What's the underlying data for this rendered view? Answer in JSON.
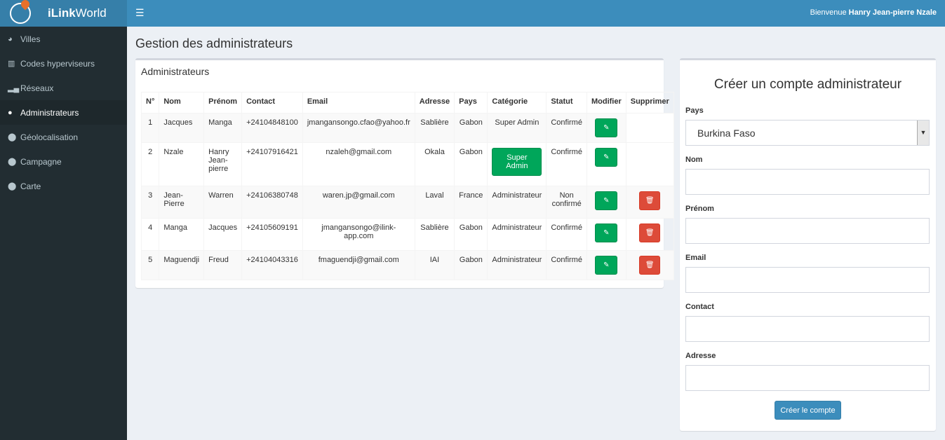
{
  "header": {
    "brand_bold": "iLink",
    "brand_rest": " World",
    "welcome_prefix": "Bienvenue ",
    "user": "Hanry Jean-pierre Nzale",
    "menu_icon": "bars-icon"
  },
  "sidebar": {
    "items": [
      {
        "label": "Villes",
        "icon": "globe-icon"
      },
      {
        "label": "Codes hyperviseurs",
        "icon": "barcode-icon"
      },
      {
        "label": "Réseaux",
        "icon": "signal-icon"
      },
      {
        "label": "Administrateurs",
        "icon": "user-icon",
        "active": true
      },
      {
        "label": "Géolocalisation",
        "icon": "map-marker-icon"
      },
      {
        "label": "Campagne",
        "icon": "map-marker-icon"
      },
      {
        "label": "Carte",
        "icon": "map-marker-icon"
      }
    ]
  },
  "page": {
    "title": "Gestion des administrateurs"
  },
  "table": {
    "title": "Administrateurs",
    "columns": [
      "N°",
      "Nom",
      "Prénom",
      "Contact",
      "Email",
      "Adresse",
      "Pays",
      "Catégorie",
      "Statut",
      "Modifier",
      "Supprimer"
    ],
    "rows": [
      {
        "n": "1",
        "nom": "Jacques",
        "prenom": "Manga",
        "contact": "+24104848100",
        "email": "jmangansongo.cfao@yahoo.fr",
        "adresse": "Sablière",
        "pays": "Gabon",
        "categorie": "Super Admin",
        "statut": "Confirmé"
      },
      {
        "n": "2",
        "nom": "Nzale",
        "prenom": "Hanry Jean-pierre",
        "contact": "+24107916421",
        "email": "nzaleh@gmail.com",
        "adresse": "Okala",
        "pays": "Gabon",
        "categorie": "Super Admin",
        "statut": "Confirmé"
      },
      {
        "n": "3",
        "nom": "Jean-Pierre",
        "prenom": "Warren",
        "contact": "+24106380748",
        "email": "waren.jp@gmail.com",
        "adresse": "Laval",
        "pays": "France",
        "categorie": "Administrateur",
        "statut": "Non confirmé"
      },
      {
        "n": "4",
        "nom": "Manga",
        "prenom": "Jacques",
        "contact": "+24105609191",
        "email": "jmangansongo@ilink-app.com",
        "adresse": "Sablière",
        "pays": "Gabon",
        "categorie": "Administrateur",
        "statut": "Confirmé"
      },
      {
        "n": "5",
        "nom": "Maguendji",
        "prenom": "Freud",
        "contact": "+24104043316",
        "email": "fmaguendji@gmail.com",
        "adresse": "IAI",
        "pays": "Gabon",
        "categorie": "Administrateur",
        "statut": "Confirmé"
      }
    ]
  },
  "form": {
    "title": "Créer un compte administrateur",
    "pays_label": "Pays",
    "pays_value": "Burkina Faso",
    "nom_label": "Nom",
    "prenom_label": "Prénom",
    "email_label": "Email",
    "contact_label": "Contact",
    "adresse_label": "Adresse",
    "submit": "Créer le compte"
  },
  "colors": {
    "primary": "#3c8dbc",
    "sidebar": "#222d32",
    "success": "#00a65a",
    "danger": "#dd4b39"
  }
}
